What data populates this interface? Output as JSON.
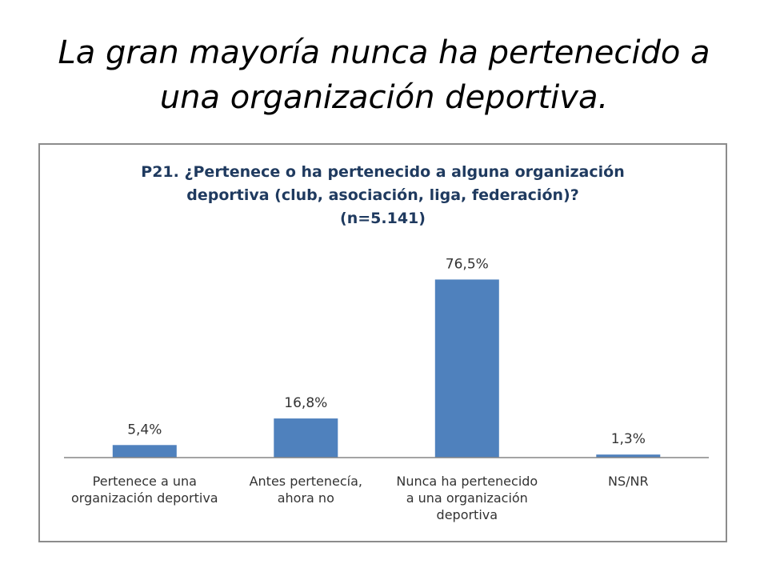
{
  "slide": {
    "title_lines": [
      "La gran mayoría nunca ha pertenecido a",
      "una organización deportiva."
    ]
  },
  "chart_data": {
    "type": "bar",
    "title_lines": [
      "P21. ¿Pertenece o ha pertenecido a alguna organización",
      "deportiva (club, asociación, liga, federación)?",
      "(n=5.141)"
    ],
    "categories": [
      [
        "Pertenece a una",
        "organización deportiva"
      ],
      [
        "Antes pertenecía,",
        "ahora no"
      ],
      [
        "Nunca ha pertenecido",
        "a una organización",
        "deportiva"
      ],
      [
        "NS/NR"
      ]
    ],
    "values": [
      5.4,
      16.8,
      76.5,
      1.3
    ],
    "value_labels": [
      "5,4%",
      "16,8%",
      "76,5%",
      "1,3%"
    ],
    "ylim": [
      0,
      100
    ],
    "grid": false,
    "legend": "none",
    "bar_color": "#4f81bd",
    "axis_color": "#868686"
  }
}
